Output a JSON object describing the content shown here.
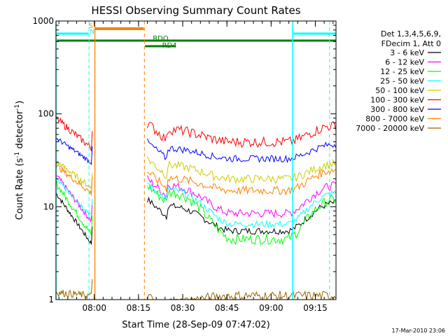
{
  "chart_data": {
    "type": "line",
    "title": "HESSI Observing Summary Count Rates",
    "xlabel": "Start Time (28-Sep-09 07:47:02)",
    "ylabel_main": "Count Rate (s",
    "ylabel_sup1": "-1",
    "ylabel_mid": " detector",
    "ylabel_sup2": "-1",
    "ylabel_end": ")",
    "y_scale": "log",
    "ylim": [
      1,
      1000
    ],
    "xlim_minutes": [
      0,
      95
    ],
    "x_ticks": [
      {
        "m": 13,
        "label": "08:00"
      },
      {
        "m": 28,
        "label": "08:15"
      },
      {
        "m": 43,
        "label": "08:30"
      },
      {
        "m": 58,
        "label": "08:45"
      },
      {
        "m": 73,
        "label": "09:00"
      },
      {
        "m": 88,
        "label": "09:15"
      }
    ],
    "y_ticks": [
      {
        "v": 1,
        "label": "1"
      },
      {
        "v": 10,
        "label": "10"
      },
      {
        "v": 100,
        "label": "100"
      },
      {
        "v": 1000,
        "label": "1000"
      }
    ],
    "legend_placement": "right",
    "legend_header": [
      "Det 1,3,4,5,6,9,",
      "FDecim 1, Att 0"
    ],
    "series": [
      {
        "name": "3 - 6 keV",
        "color": "#000000",
        "pre": [
          14,
          4
        ],
        "post": [
          12,
          5.5,
          11
        ]
      },
      {
        "name": "6 - 12 keV",
        "color": "#ff00ff",
        "pre": [
          22,
          7
        ],
        "post": [
          20,
          8.5,
          17
        ]
      },
      {
        "name": "12 - 25 keV",
        "color": "#00ff00",
        "pre": [
          18,
          5
        ],
        "post": [
          17,
          4.5,
          12
        ]
      },
      {
        "name": "25 - 50 keV",
        "color": "#00ffff",
        "pre": [
          20,
          8
        ],
        "post": [
          18,
          6.5,
          14
        ]
      },
      {
        "name": "50 - 100 keV",
        "color": "#cccc00",
        "pre": [
          31,
          16
        ],
        "post": [
          33,
          20,
          29
        ]
      },
      {
        "name": "100 - 300 keV",
        "color": "#ff0000",
        "pre": [
          90,
          43
        ],
        "post": [
          80,
          50,
          75
        ]
      },
      {
        "name": "300 - 800 keV",
        "color": "#0000ff",
        "pre": [
          55,
          30
        ],
        "post": [
          50,
          33,
          47
        ]
      },
      {
        "name": "800 - 7000 keV",
        "color": "#ff7f00",
        "pre": [
          28,
          14
        ],
        "post": [
          24,
          15,
          25
        ]
      },
      {
        "name": "7000 - 20000 keV",
        "color": "#996600",
        "pre": [
          1.2,
          1.1
        ],
        "post": [
          1.1,
          1.1,
          1.1
        ]
      }
    ],
    "flags": [
      {
        "label": "S",
        "color": "#ff7f00"
      },
      {
        "label": "N",
        "color": "#00ffff"
      },
      {
        "label": "RD4",
        "color": "#008000"
      },
      {
        "label": "RDO",
        "color": "#008000"
      }
    ],
    "footer_date": "17-Mar-2010 23:06"
  }
}
